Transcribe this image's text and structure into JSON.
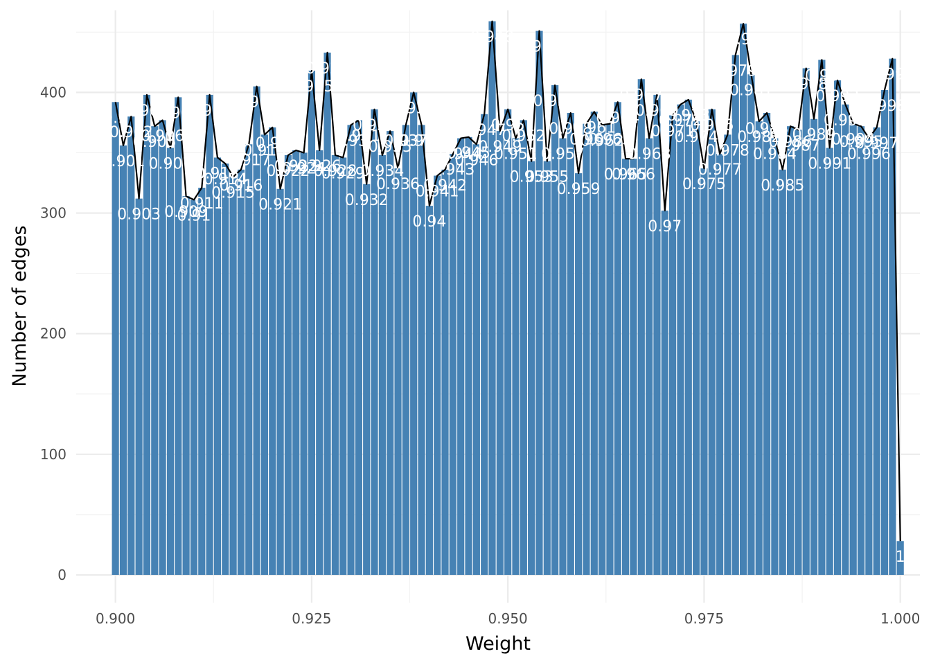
{
  "chart_data": {
    "type": "bar",
    "title": "",
    "xlabel": "Weight",
    "ylabel": "Number of edges",
    "xlim": [
      0.895,
      1.0025
    ],
    "ylim": [
      -23,
      468
    ],
    "x_ticks": [
      0.9,
      0.925,
      0.95,
      0.975,
      1.0
    ],
    "x_tick_labels": [
      "0.900",
      "0.925",
      "0.950",
      "0.975",
      "1.000"
    ],
    "y_ticks": [
      0,
      100,
      200,
      300,
      400
    ],
    "y_tick_labels": [
      "0",
      "100",
      "200",
      "300",
      "400"
    ],
    "grid": true,
    "bar_color": "#4682B4",
    "line_color": "#000000",
    "label_color": "#ffffff",
    "x": [
      0.9,
      0.901,
      0.902,
      0.903,
      0.904,
      0.905,
      0.906,
      0.907,
      0.908,
      0.909,
      0.91,
      0.911,
      0.912,
      0.913,
      0.914,
      0.915,
      0.916,
      0.917,
      0.918,
      0.919,
      0.92,
      0.921,
      0.922,
      0.923,
      0.924,
      0.925,
      0.926,
      0.927,
      0.928,
      0.929,
      0.93,
      0.931,
      0.932,
      0.933,
      0.934,
      0.935,
      0.936,
      0.937,
      0.938,
      0.939,
      0.94,
      0.941,
      0.942,
      0.943,
      0.944,
      0.945,
      0.946,
      0.947,
      0.948,
      0.949,
      0.95,
      0.951,
      0.952,
      0.953,
      0.954,
      0.955,
      0.956,
      0.957,
      0.958,
      0.959,
      0.96,
      0.961,
      0.962,
      0.963,
      0.964,
      0.965,
      0.966,
      0.967,
      0.968,
      0.969,
      0.97,
      0.971,
      0.972,
      0.973,
      0.974,
      0.975,
      0.976,
      0.977,
      0.978,
      0.979,
      0.98,
      0.981,
      0.982,
      0.983,
      0.984,
      0.985,
      0.986,
      0.987,
      0.988,
      0.989,
      0.99,
      0.991,
      0.992,
      0.993,
      0.994,
      0.995,
      0.996,
      0.997,
      0.998,
      0.999,
      1.0
    ],
    "values": [
      392,
      356,
      380,
      312,
      398,
      372,
      377,
      354,
      396,
      314,
      311,
      321,
      398,
      346,
      341,
      330,
      336,
      357,
      405,
      365,
      371,
      320,
      348,
      352,
      350,
      418,
      352,
      433,
      348,
      346,
      373,
      377,
      324,
      386,
      348,
      368,
      337,
      373,
      400,
      373,
      306,
      331,
      336,
      349,
      362,
      363,
      357,
      382,
      459,
      368,
      386,
      362,
      377,
      343,
      451,
      343,
      406,
      362,
      383,
      333,
      374,
      384,
      373,
      374,
      392,
      345,
      345,
      411,
      362,
      398,
      302,
      381,
      390,
      394,
      376,
      337,
      386,
      349,
      365,
      431,
      457,
      415,
      376,
      383,
      362,
      336,
      372,
      369,
      420,
      378,
      427,
      354,
      410,
      390,
      374,
      372,
      362,
      371,
      402,
      428,
      28
    ],
    "labels": [
      "0.9",
      "0.901",
      "0.902",
      "0.903",
      "0.904",
      "0.905",
      "0.906",
      "0.907",
      "0.908",
      "0.909",
      "0.91",
      "0.911",
      "0.912",
      "0.913",
      "0.914",
      "0.915",
      "0.916",
      "0.917",
      "0.918",
      "0.919",
      "0.92",
      "0.921",
      "0.922",
      "0.923",
      "0.924",
      "0.925",
      "0.926",
      "0.927",
      "0.928",
      "0.929",
      "0.93",
      "0.931",
      "0.932",
      "0.933",
      "0.934",
      "0.935",
      "0.936",
      "0.937",
      "0.938",
      "0.939",
      "0.94",
      "0.941",
      "0.942",
      "0.943",
      "0.944",
      "0.945",
      "0.946",
      "0.947",
      "0.948",
      "0.949",
      "0.95",
      "0.951",
      "0.952",
      "0.953",
      "0.954",
      "0.955",
      "0.956",
      "0.957",
      "0.958",
      "0.959",
      "0.96",
      "0.961",
      "0.962",
      "0.963",
      "0.964",
      "0.965",
      "0.966",
      "0.967",
      "0.968",
      "0.969",
      "0.97",
      "0.971",
      "0.972",
      "0.973",
      "0.974",
      "0.975",
      "0.976",
      "0.977",
      "0.978",
      "0.979",
      "0.98",
      "0.981",
      "0.982",
      "0.983",
      "0.984",
      "0.985",
      "0.986",
      "0.987",
      "0.988",
      "0.989",
      "0.99",
      "0.991",
      "0.992",
      "0.993",
      "0.994",
      "0.995",
      "0.996",
      "0.997",
      "0.998",
      "0.999",
      "1"
    ]
  }
}
